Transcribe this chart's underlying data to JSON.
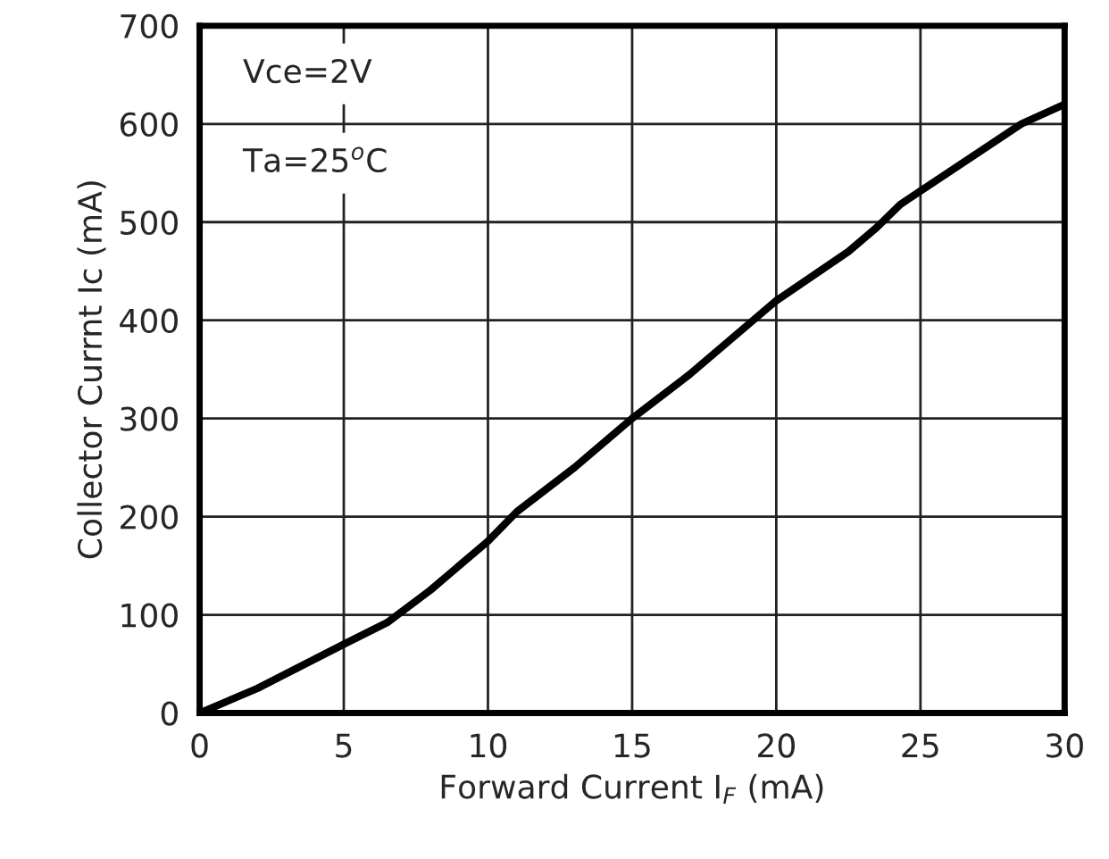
{
  "chart_data": {
    "type": "line",
    "xlabel": "Forward Current I$_{F}$ (mA)",
    "ylabel": "Collector Currnt Ic (mA)",
    "annotations": [
      "Vce=2V",
      "Ta=25$^{o}$C"
    ],
    "series": [
      {
        "color": "#000000",
        "x": [
          0,
          2,
          5,
          6.5,
          8,
          10,
          11,
          13,
          15,
          17,
          19,
          20,
          21,
          22.5,
          23.5,
          24.3,
          26.3,
          28.5,
          30
        ],
        "values": [
          0,
          25,
          70,
          92,
          125,
          175,
          205,
          250,
          300,
          345,
          395,
          420,
          440,
          470,
          495,
          518,
          557,
          600,
          620
        ]
      }
    ],
    "xlim": [
      0,
      30
    ],
    "xticks": [
      0,
      5,
      10,
      15,
      20,
      25,
      30
    ],
    "ylim": [
      0,
      700
    ],
    "yticks": [
      0,
      100,
      200,
      300,
      400,
      500,
      600,
      700
    ],
    "grid": true,
    "marker": "none",
    "line_style": "solid"
  }
}
